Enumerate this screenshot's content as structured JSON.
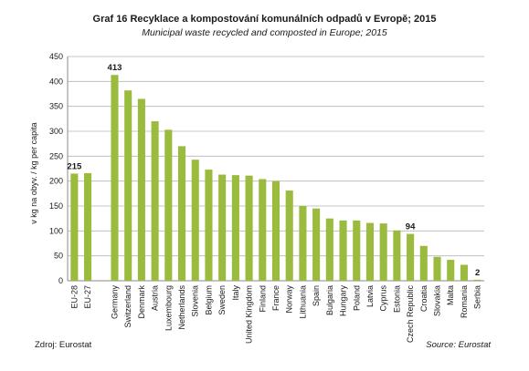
{
  "chart_data": {
    "type": "bar",
    "title": "Graf 16 Recyklace a kompostování komunálních odpadů v Evropě; 2015",
    "subtitle": "Municipal waste recycled and composted in Europe; 2015",
    "ylabel": "v kg na obyv. / kg per capita",
    "ylim": [
      0,
      450
    ],
    "yticks": [
      0,
      50,
      100,
      150,
      200,
      250,
      300,
      350,
      400,
      450
    ],
    "grid": true,
    "bar_color": "#9bbb3f",
    "categories": [
      "EU-28",
      "EU-27",
      "",
      "Germany",
      "Switzerland",
      "Denmark",
      "Austria",
      "Luxembourg",
      "Netherlands",
      "Slovenia",
      "Belgium",
      "Sweden",
      "Italy",
      "United Kingdom",
      "Finland",
      "France",
      "Norway",
      "Lithuania",
      "Spain",
      "Bulgaria",
      "Hungary",
      "Poland",
      "Latvia",
      "Cyprus",
      "Estonia",
      "Czech Republic",
      "Croatia",
      "Slovakia",
      "Malta",
      "Romania",
      "Serbia"
    ],
    "values": [
      215,
      216,
      null,
      413,
      382,
      365,
      320,
      303,
      270,
      243,
      223,
      213,
      212,
      211,
      204,
      200,
      181,
      150,
      145,
      125,
      121,
      121,
      116,
      115,
      101,
      94,
      70,
      48,
      42,
      32,
      2
    ],
    "data_labels": [
      {
        "index": 0,
        "text": "215"
      },
      {
        "index": 3,
        "text": "413"
      },
      {
        "index": 25,
        "text": "94"
      },
      {
        "index": 30,
        "text": "2"
      }
    ]
  },
  "footer": {
    "source_cz": "Zdroj: Eurostat",
    "source_en": "Source: Eurostat"
  }
}
